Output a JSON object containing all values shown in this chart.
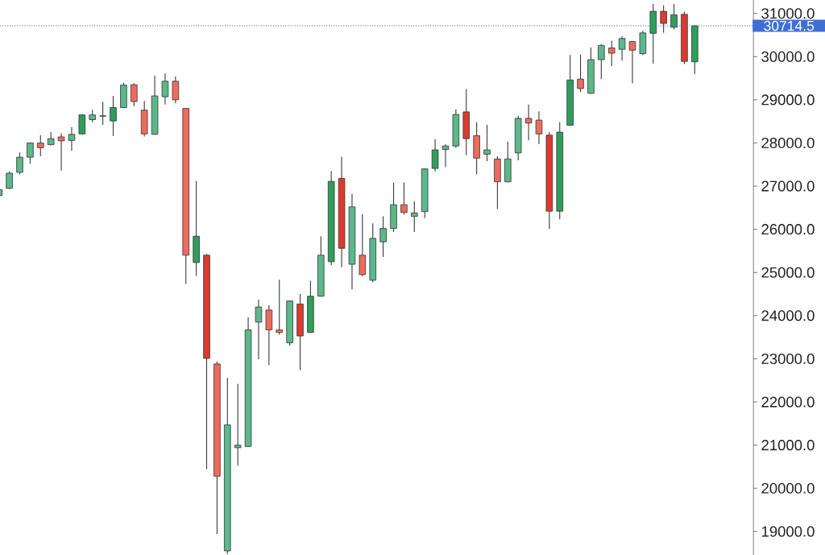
{
  "chart_data": {
    "type": "candlestick",
    "categories": [
      null,
      null,
      null,
      null,
      null,
      null,
      null,
      null,
      null,
      null,
      null,
      null,
      null,
      null,
      null,
      null,
      null,
      null,
      null,
      null,
      null,
      null,
      null,
      null,
      null,
      null,
      null,
      null,
      null,
      null,
      null,
      null,
      null,
      null,
      null,
      null,
      null,
      null,
      null,
      null,
      null,
      null,
      null,
      null,
      null,
      null,
      null,
      null,
      null,
      null,
      null,
      null,
      null,
      null,
      null,
      null,
      null,
      null,
      null,
      null,
      null,
      null,
      null,
      null,
      null,
      null,
      null,
      null
    ],
    "ohlc": [
      [
        26780,
        26930,
        26770,
        26920
      ],
      [
        26950,
        27340,
        26930,
        27300
      ],
      [
        27320,
        27780,
        27270,
        27670
      ],
      [
        27670,
        28010,
        27520,
        28000
      ],
      [
        28000,
        28180,
        27690,
        27890
      ],
      [
        27960,
        28250,
        27950,
        28100
      ],
      [
        28140,
        28230,
        27360,
        28050
      ],
      [
        28060,
        28370,
        27820,
        28200
      ],
      [
        28210,
        28660,
        28200,
        28650
      ],
      [
        28540,
        28770,
        28480,
        28650
      ],
      [
        28620,
        28950,
        28420,
        28630
      ],
      [
        28510,
        29090,
        28160,
        28820
      ],
      [
        28820,
        29400,
        28810,
        29340
      ],
      [
        29350,
        29380,
        28850,
        28960
      ],
      [
        28760,
        28970,
        28150,
        28210
      ],
      [
        28200,
        29560,
        28190,
        29090
      ],
      [
        29070,
        29610,
        28890,
        29430
      ],
      [
        29430,
        29540,
        28920,
        29000
      ],
      [
        28800,
        28810,
        24740,
        25400
      ],
      [
        25230,
        27120,
        24920,
        25840
      ],
      [
        25400,
        25430,
        20440,
        23010
      ],
      [
        22880,
        22940,
        18940,
        20280
      ],
      [
        18550,
        22560,
        18480,
        21470
      ],
      [
        20940,
        22420,
        20530,
        21000
      ],
      [
        20970,
        23960,
        20960,
        23670
      ],
      [
        23850,
        24370,
        22990,
        24200
      ],
      [
        24130,
        24240,
        22850,
        23670
      ],
      [
        23670,
        24830,
        23560,
        23610
      ],
      [
        23370,
        24350,
        23300,
        24340
      ],
      [
        24270,
        24500,
        22740,
        23530
      ],
      [
        23610,
        24810,
        23600,
        24450
      ],
      [
        24450,
        25840,
        24440,
        25400
      ],
      [
        25250,
        27350,
        25170,
        27110
      ],
      [
        27180,
        27680,
        25120,
        25560
      ],
      [
        25190,
        26820,
        24610,
        26520
      ],
      [
        25400,
        26350,
        24910,
        24950
      ],
      [
        24820,
        26140,
        24770,
        25790
      ],
      [
        25710,
        26300,
        25360,
        26020
      ],
      [
        26020,
        27080,
        25940,
        26570
      ],
      [
        26570,
        27080,
        26340,
        26390
      ],
      [
        26300,
        26650,
        25940,
        26380
      ],
      [
        26410,
        27410,
        26260,
        27400
      ],
      [
        27410,
        28090,
        27340,
        27840
      ],
      [
        27850,
        27970,
        27440,
        27930
      ],
      [
        27930,
        28780,
        27890,
        28660
      ],
      [
        28720,
        29250,
        27720,
        28100
      ],
      [
        28170,
        28480,
        27270,
        27650
      ],
      [
        27740,
        28420,
        27580,
        27840
      ],
      [
        27630,
        27690,
        26470,
        27100
      ],
      [
        27100,
        28030,
        27090,
        27630
      ],
      [
        27770,
        28630,
        27600,
        28570
      ],
      [
        28570,
        28890,
        28060,
        28460
      ],
      [
        28530,
        28730,
        27970,
        28210
      ],
      [
        28180,
        28250,
        26010,
        26420
      ],
      [
        26420,
        28480,
        26230,
        28250
      ],
      [
        28410,
        30040,
        28400,
        29460
      ],
      [
        29480,
        30050,
        29180,
        29260
      ],
      [
        29150,
        30210,
        29140,
        29930
      ],
      [
        29930,
        30290,
        29480,
        30260
      ],
      [
        30200,
        30370,
        29780,
        30080
      ],
      [
        30170,
        30470,
        29910,
        30420
      ],
      [
        30350,
        30360,
        29380,
        30150
      ],
      [
        30070,
        30600,
        30040,
        30550
      ],
      [
        30540,
        31220,
        29840,
        31050
      ],
      [
        31050,
        31190,
        30550,
        30770
      ],
      [
        30680,
        31220,
        30630,
        30970
      ],
      [
        30980,
        31040,
        29830,
        29890
      ],
      [
        29880,
        30720,
        29600,
        30714.5
      ]
    ],
    "colors": [
      "#5bb88a",
      "#5bb88a",
      "#5bb88a",
      "#5bb88a",
      "#ee6b5c",
      "#5bb88a",
      "#ee6b5c",
      "#5bb88a",
      "#2f9e5b",
      "#5bb88a",
      "#5bb88a",
      "#2f9e5b",
      "#5bb88a",
      "#ee6b5c",
      "#ee6b5c",
      "#5bb88a",
      "#5bb88a",
      "#ee6b5c",
      "#ee6b5c",
      "#2f9e5b",
      "#dc3b2e",
      "#ee6b5c",
      "#5bb88a",
      "#5bb88a",
      "#5bb88a",
      "#5bb88a",
      "#ee6b5c",
      "#ee6b5c",
      "#5bb88a",
      "#dc3b2e",
      "#2f9e5b",
      "#5bb88a",
      "#2f9e5b",
      "#dc3b2e",
      "#5bb88a",
      "#ee6b5c",
      "#5bb88a",
      "#5bb88a",
      "#5bb88a",
      "#ee6b5c",
      "#5bb88a",
      "#5bb88a",
      "#2f9e5b",
      "#5bb88a",
      "#5bb88a",
      "#dc3b2e",
      "#ee6b5c",
      "#5bb88a",
      "#ee6b5c",
      "#5bb88a",
      "#5bb88a",
      "#ee6b5c",
      "#ee6b5c",
      "#dc3b2e",
      "#2f9e5b",
      "#2f9e5b",
      "#ee6b5c",
      "#5bb88a",
      "#5bb88a",
      "#ee6b5c",
      "#5bb88a",
      "#ee6b5c",
      "#5bb88a",
      "#2f9e5b",
      "#dc3b2e",
      "#2f9e5b",
      "#dc3b2e",
      "#2f9e5b"
    ],
    "ylim": [
      18455,
      31312
    ],
    "yticks": [
      {
        "value": 19000,
        "label": "19000.0"
      },
      {
        "value": 20000,
        "label": "20000.0"
      },
      {
        "value": 21000,
        "label": "21000.0"
      },
      {
        "value": 22000,
        "label": "22000.0"
      },
      {
        "value": 23000,
        "label": "23000.0"
      },
      {
        "value": 24000,
        "label": "24000.0"
      },
      {
        "value": 25000,
        "label": "25000.0"
      },
      {
        "value": 26000,
        "label": "26000.0"
      },
      {
        "value": 27000,
        "label": "27000.0"
      },
      {
        "value": 28000,
        "label": "28000.0"
      },
      {
        "value": 29000,
        "label": "29000.0"
      },
      {
        "value": 30000,
        "label": "30000.0"
      },
      {
        "value": 31000,
        "label": "31000.0"
      }
    ],
    "tick_labels": "y",
    "ref_lines": [
      {
        "axis": "y",
        "value": 30714.5,
        "label": "30714.5",
        "color": "#3f6fd4",
        "line_style": "dotted"
      }
    ]
  }
}
